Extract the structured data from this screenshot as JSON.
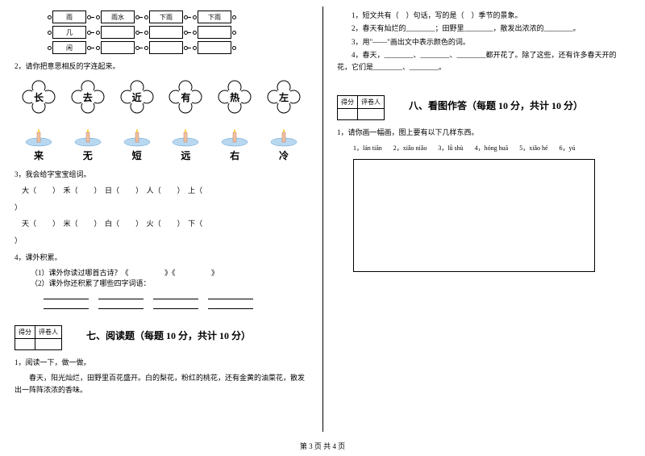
{
  "leftCol": {
    "chains": [
      {
        "boxes": [
          "雨",
          "雨水",
          "下雨",
          "下雨"
        ]
      },
      {
        "boxes": [
          "几",
          "",
          "",
          ""
        ]
      },
      {
        "boxes": [
          "闲",
          "",
          "",
          ""
        ]
      }
    ],
    "q2": "2，请你把意思相反的字连起来。",
    "flowers": [
      "长",
      "去",
      "近",
      "有",
      "热",
      "左"
    ],
    "candles": [
      "来",
      "无",
      "短",
      "远",
      "右",
      "冷"
    ],
    "q3": "3，我会给字宝宝组词。",
    "ziRow1": [
      "大（",
      "）　禾（",
      "）　日（",
      "）　人（",
      "）　上（",
      ""
    ],
    "ziRow1End": "）",
    "ziRow2": [
      "天（",
      "）　米（",
      "）　白（",
      "）　火（",
      "）　下（",
      ""
    ],
    "ziRow2End": "）",
    "q4": "4，课外积累。",
    "q4_1a": "（1）课外你读过哪首古诗？《",
    "q4_1b": "》《",
    "q4_1c": "》",
    "q4_2": "（2）课外你还积累了哪些四字词语：",
    "scoreLabels": [
      "得分",
      "评卷人"
    ],
    "section7": "七、阅读题（每题 10 分，共计 10 分）",
    "read1": "1，阅读一下，做一做。",
    "readPara": "春天，阳光灿烂，田野里百花盛开。白的梨花，粉红的桃花，还有金黄的油菜花，散发出一阵阵浓浓的香味。"
  },
  "rightCol": {
    "sub1": "1，短文共有（　）句话，写的是（　）季节的景象。",
    "sub2a": "2，春天有灿烂的________；田野里________，散发出浓浓的________。",
    "sub3": "3，用\"——\"画出文中表示颜色的词。",
    "sub4": "4，春天，________、________、________都开花了。除了这些，还有许多春天开的花，它们是________、________。",
    "scoreLabels": [
      "得分",
      "评卷人"
    ],
    "section8": "八、看图作答（每题 10 分，共计 10 分）",
    "draw1": "1，请你画一幅画，图上要有以下几样东西。",
    "pinyin": [
      "1，lán tiān",
      "2，xiǎo niǎo",
      "3，lǜ shù",
      "4，hóng huā",
      "5，xiǎo hé",
      "6，yú"
    ]
  },
  "pageNum": "第 3 页 共 4 页"
}
